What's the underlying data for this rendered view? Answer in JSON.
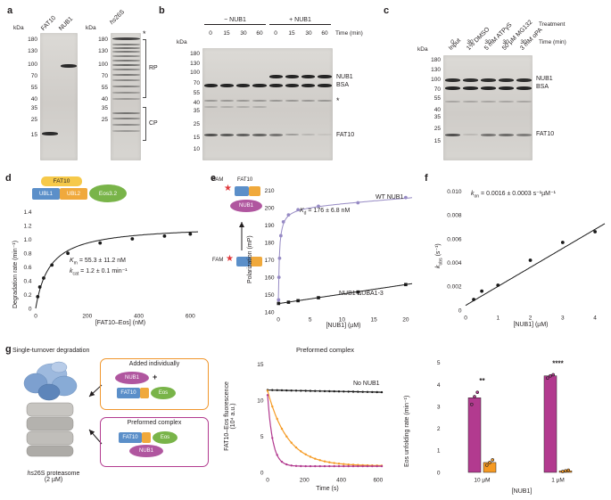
{
  "panels": {
    "a": {
      "label": "a",
      "kda1": "kDa",
      "kda2": "kDa",
      "lanes": [
        "FAT10",
        "NUB1"
      ],
      "ladder1": [
        "180",
        "130",
        "100",
        "70",
        "55",
        "40",
        "35",
        "25",
        "15"
      ],
      "ladder2": [
        "180",
        "130",
        "100",
        "70",
        "55",
        "40",
        "35",
        "25"
      ],
      "gel2_lane_italic": "hs",
      "gel2_lane_rest": "26S",
      "asterisk": "*",
      "rp": "RP",
      "cp": "CP"
    },
    "b": {
      "label": "b",
      "group_minus": "− NUB1",
      "group_plus": "+ NUB1",
      "times": [
        "0",
        "15",
        "30",
        "60",
        "0",
        "15",
        "30",
        "60"
      ],
      "time_label": "Time (min)",
      "kda": "kDa",
      "ladder": [
        "180",
        "130",
        "100",
        "70",
        "55",
        "40",
        "35",
        "25",
        "15",
        "10"
      ],
      "nub1": "NUB1",
      "bsa": "BSA",
      "star": "*",
      "fat10": "FAT10"
    },
    "c": {
      "label": "c",
      "treatments": [
        "Input",
        "1% DMSO",
        "5 mM ATPγS",
        "50 µM MG132",
        "3 mM oPA"
      ],
      "treatment_label": "Treatment",
      "times": [
        "0",
        "30",
        "30",
        "30",
        "30"
      ],
      "time_label": "Time (min)",
      "kda": "kDa",
      "ladder": [
        "180",
        "130",
        "100",
        "70",
        "55",
        "40",
        "35",
        "25",
        "15"
      ],
      "nub1": "NUB1",
      "bsa": "BSA",
      "fat10": "FAT10"
    },
    "d": {
      "label": "d",
      "fat10": "FAT10",
      "ubl1": "UBL1",
      "ubl2": "UBL2",
      "eos": "Eos3.2"
    },
    "e": {
      "label": "e",
      "fam1": "FAM",
      "fam2": "FAM",
      "fat10": "FAT10",
      "nub1": "NUB1"
    },
    "f": {
      "label": "f"
    },
    "g": {
      "label": "g",
      "title": "Single-turnover degradation",
      "added_box": "Added individually",
      "preformed_box": "Preformed complex",
      "nub1": "NUB1",
      "plus": "+",
      "fat10_1": "FAT10",
      "eos_1": "Eos",
      "fat10_2": "FAT10",
      "eos_2": "Eos",
      "nub1_2": "NUB1",
      "psome_italic": "hs",
      "psome_rest": "26S proteasome",
      "psome_conc": "(2 µM)"
    }
  },
  "icons": {
    "fam_star": "★"
  },
  "gels": {
    "a1": {
      "lanes": 2,
      "bands": [
        [
          0,
          0.79,
          0.9,
          4
        ],
        [
          1,
          0.26,
          0.92,
          4
        ]
      ]
    },
    "a2": {
      "lanes": 1,
      "bands": [
        [
          0,
          0.045,
          0.8,
          3
        ],
        [
          0,
          0.09,
          0.5,
          2
        ],
        [
          0,
          0.12,
          0.55,
          2
        ],
        [
          0,
          0.15,
          0.5,
          2
        ],
        [
          0,
          0.185,
          0.45,
          2
        ],
        [
          0,
          0.22,
          0.5,
          2
        ],
        [
          0,
          0.255,
          0.6,
          2
        ],
        [
          0,
          0.29,
          0.45,
          2
        ],
        [
          0,
          0.33,
          0.5,
          2
        ],
        [
          0,
          0.37,
          0.4,
          2
        ],
        [
          0,
          0.42,
          0.45,
          2
        ],
        [
          0,
          0.47,
          0.35,
          2
        ],
        [
          0,
          0.52,
          0.3,
          2
        ],
        [
          0,
          0.63,
          0.5,
          2
        ],
        [
          0,
          0.67,
          0.45,
          2
        ],
        [
          0,
          0.72,
          0.4,
          2
        ],
        [
          0,
          0.77,
          0.3,
          2
        ]
      ]
    },
    "b": {
      "lanes": 8,
      "bands": [
        [
          0,
          0.335,
          0.95,
          4
        ],
        [
          1,
          0.335,
          0.95,
          4
        ],
        [
          2,
          0.335,
          0.95,
          4
        ],
        [
          3,
          0.335,
          0.95,
          4
        ],
        [
          4,
          0.335,
          0.95,
          4
        ],
        [
          5,
          0.335,
          0.95,
          4
        ],
        [
          6,
          0.335,
          0.95,
          4
        ],
        [
          7,
          0.335,
          0.95,
          4
        ],
        [
          4,
          0.255,
          0.95,
          4
        ],
        [
          5,
          0.255,
          0.95,
          4
        ],
        [
          6,
          0.255,
          0.95,
          4
        ],
        [
          7,
          0.255,
          0.95,
          4
        ],
        [
          0,
          0.47,
          0.3,
          2
        ],
        [
          1,
          0.47,
          0.3,
          2
        ],
        [
          2,
          0.47,
          0.3,
          2
        ],
        [
          3,
          0.47,
          0.3,
          2
        ],
        [
          4,
          0.47,
          0.3,
          2
        ],
        [
          5,
          0.47,
          0.3,
          2
        ],
        [
          6,
          0.47,
          0.3,
          2
        ],
        [
          7,
          0.47,
          0.3,
          2
        ],
        [
          0,
          0.52,
          0.18,
          2
        ],
        [
          1,
          0.52,
          0.18,
          2
        ],
        [
          2,
          0.52,
          0.18,
          2
        ],
        [
          3,
          0.52,
          0.18,
          2
        ],
        [
          0,
          0.77,
          0.7,
          3
        ],
        [
          1,
          0.77,
          0.65,
          3
        ],
        [
          2,
          0.77,
          0.62,
          3
        ],
        [
          3,
          0.77,
          0.6,
          3
        ],
        [
          4,
          0.77,
          0.5,
          3
        ],
        [
          5,
          0.77,
          0.28,
          2
        ],
        [
          6,
          0.77,
          0.14,
          2
        ],
        [
          7,
          0.77,
          0.07,
          2
        ]
      ]
    },
    "c": {
      "lanes": 5,
      "bands": [
        [
          0,
          0.24,
          0.9,
          4
        ],
        [
          1,
          0.24,
          0.9,
          4
        ],
        [
          2,
          0.24,
          0.9,
          4
        ],
        [
          3,
          0.24,
          0.9,
          4
        ],
        [
          4,
          0.24,
          0.9,
          4
        ],
        [
          0,
          0.315,
          0.95,
          4
        ],
        [
          1,
          0.315,
          0.95,
          4
        ],
        [
          2,
          0.315,
          0.95,
          4
        ],
        [
          3,
          0.315,
          0.95,
          4
        ],
        [
          4,
          0.315,
          0.95,
          4
        ],
        [
          0,
          0.44,
          0.22,
          2
        ],
        [
          1,
          0.44,
          0.22,
          2
        ],
        [
          2,
          0.44,
          0.22,
          2
        ],
        [
          3,
          0.44,
          0.22,
          2
        ],
        [
          4,
          0.44,
          0.22,
          2
        ],
        [
          0,
          0.755,
          0.7,
          3
        ],
        [
          1,
          0.755,
          0.12,
          2
        ],
        [
          2,
          0.755,
          0.5,
          3
        ],
        [
          3,
          0.755,
          0.55,
          3
        ],
        [
          4,
          0.755,
          0.45,
          3
        ]
      ]
    }
  },
  "chart_data": [
    {
      "id": "d",
      "type": "scatter",
      "xlabel": "[FAT10–Eos] (nM)",
      "ylabel": "Degradation rate (min⁻¹)",
      "xlim": [
        0,
        630
      ],
      "ylim": [
        0,
        1.45
      ],
      "xticks": [
        0,
        200,
        400,
        600
      ],
      "xtick_labels": [
        "0",
        "200",
        "400",
        "600"
      ],
      "yticks": [
        0,
        0.2,
        0.4,
        0.6,
        0.8,
        1.0,
        1.2,
        1.4
      ],
      "ytick_labels": [
        "0",
        "0.2",
        "0.4",
        "0.6",
        "0.8",
        "1.0",
        "1.2",
        "1.4"
      ],
      "fit": {
        "model": "michaelis-menten",
        "vmax": 1.21,
        "km": 55.3
      },
      "series": [
        {
          "name": "FAT10–Eos degradation",
          "color": "#1a1a1a",
          "marker": "circle",
          "points": [
            [
              8,
              0.17,
              0.04
            ],
            [
              16,
              0.31,
              0.05
            ],
            [
              31,
              0.44,
              0.06
            ],
            [
              63,
              0.63,
              0.09
            ],
            [
              125,
              0.8,
              0.11
            ],
            [
              250,
              0.95,
              0.08
            ],
            [
              375,
              1.01,
              0.1
            ],
            [
              500,
              1.05,
              0.07
            ],
            [
              600,
              1.08,
              0.05
            ]
          ]
        }
      ],
      "annotation_km": {
        "sym": "K",
        "sub": "m",
        "rest": " = 55.3 ± 11.2 nM"
      },
      "annotation_kcat": {
        "sym": "k",
        "sub": "cat",
        "rest": " = 1.2 ± 0.1 min⁻¹"
      }
    },
    {
      "id": "e",
      "type": "scatter",
      "xlabel": "[NUB1] (µM)",
      "ylabel": "Polarization (mP)",
      "xlim": [
        0,
        21
      ],
      "ylim": [
        140,
        212
      ],
      "xticks": [
        0,
        5,
        10,
        15,
        20
      ],
      "xtick_labels": [
        "0",
        "5",
        "10",
        "15",
        "20"
      ],
      "yticks": [
        140,
        150,
        160,
        170,
        180,
        190,
        200,
        210
      ],
      "ytick_labels": [
        "140",
        "150",
        "160",
        "170",
        "180",
        "190",
        "200",
        "210"
      ],
      "series": [
        {
          "name": "WT NUB1",
          "color": "#968ac4",
          "marker": "circle",
          "fit": {
            "model": "binding",
            "p0": 145.5,
            "amp": 55,
            "kd": 0.176,
            "slope": 0.28
          },
          "points": [
            [
              0.04,
              147
            ],
            [
              0.1,
              160
            ],
            [
              0.2,
              171
            ],
            [
              0.4,
              184
            ],
            [
              0.8,
              192
            ],
            [
              1.6,
              196
            ],
            [
              3.1,
              199
            ],
            [
              6.3,
              201
            ],
            [
              12.5,
              203
            ],
            [
              20,
              206
            ]
          ]
        },
        {
          "name": "NUB1 ΔUBA1-3",
          "color": "#1a1a1a",
          "marker": "square",
          "fit": {
            "model": "linear",
            "slope": 0.55,
            "intercept": 144.8
          },
          "points": [
            [
              0.04,
              144.9
            ],
            [
              1.6,
              145.6
            ],
            [
              3.1,
              146.5
            ],
            [
              6.3,
              148.2
            ],
            [
              12.5,
              151.5
            ],
            [
              20,
              155.8
            ]
          ]
        }
      ],
      "annotation_kd": {
        "sym": "K",
        "sub": "d",
        "rest": " = 176 ± 6.8 nM"
      },
      "label_wt": "WT NUB1",
      "label_mut": "NUB1 ΔUBA1-3"
    },
    {
      "id": "f",
      "type": "scatter",
      "xlabel": "[NUB1] (µM)",
      "ylabel_parts": {
        "sym": "k",
        "sub": "obs",
        "rest": " (s⁻¹)"
      },
      "xlim": [
        0,
        4.3
      ],
      "ylim": [
        0,
        0.0102
      ],
      "xticks": [
        0,
        1,
        2,
        3,
        4
      ],
      "xtick_labels": [
        "0",
        "1",
        "2",
        "3",
        "4"
      ],
      "yticks": [
        0,
        0.002,
        0.004,
        0.006,
        0.008,
        0.01
      ],
      "ytick_labels": [
        "0",
        "0.002",
        "0.004",
        "0.006",
        "0.008",
        "0.010"
      ],
      "fit": {
        "model": "linear",
        "slope": 0.0016,
        "intercept": 0.0004
      },
      "series": [
        {
          "name": "kobs",
          "color": "#1a1a1a",
          "marker": "circle",
          "points": [
            [
              0.25,
              0.0009
            ],
            [
              0.5,
              0.0016
            ],
            [
              1,
              0.0021
            ],
            [
              2,
              0.0042
            ],
            [
              3,
              0.0057
            ],
            [
              4,
              0.0066
            ]
          ]
        }
      ],
      "annotation_kon": {
        "sym": "k",
        "sub": "on",
        "rest": " = 0.0016 ± 0.0003 s⁻¹µM⁻¹"
      }
    },
    {
      "id": "g_kinetics",
      "type": "line",
      "title": "Preformed complex",
      "xlabel": "Time (s)",
      "ylabel_line1": "FAT10–Eos fluorescence",
      "ylabel_line2": "(10⁴ a.u.)",
      "xlim": [
        0,
        620
      ],
      "ylim": [
        0,
        15.8
      ],
      "xticks": [
        0,
        200,
        400,
        600
      ],
      "xtick_labels": [
        "0",
        "200",
        "400",
        "600"
      ],
      "yticks": [
        0,
        5,
        10,
        15
      ],
      "ytick_labels": [
        "0",
        "5",
        "10",
        "15"
      ],
      "series": [
        {
          "name": "No NUB1",
          "color": "#1a1a1a",
          "model": {
            "kind": "flat",
            "start": 11.4,
            "end": 11.1
          }
        },
        {
          "name": "Added individually",
          "color": "#f59a23",
          "model": {
            "kind": "exp",
            "start": 11.3,
            "plateau": 0.9,
            "tau": 110
          }
        },
        {
          "name": "Preformed complex",
          "color": "#b23a8f",
          "model": {
            "kind": "exp",
            "start": 10.7,
            "plateau": 0.85,
            "tau": 28
          }
        }
      ],
      "label_no_nub1": "No NUB1"
    },
    {
      "id": "g_bars",
      "type": "bar",
      "xlabel": "[NUB1]",
      "ylabel": "Eos unfolding rate (min⁻¹)",
      "categories": [
        "10 µM",
        "1 µM"
      ],
      "ylim": [
        0,
        5.2
      ],
      "yticks": [
        0,
        1,
        2,
        3,
        4,
        5
      ],
      "ytick_labels": [
        "0",
        "1",
        "2",
        "3",
        "4",
        "5"
      ],
      "series": [
        {
          "name": "Preformed complex",
          "color": "#b23a8f",
          "values": [
            3.4,
            4.4
          ],
          "errors": [
            0.3,
            0.08
          ],
          "points": [
            [
              3.1,
              3.45,
              3.65
            ],
            [
              4.3,
              4.4,
              4.45
            ]
          ]
        },
        {
          "name": "Added individually",
          "color": "#f59a23",
          "values": [
            0.45,
            0.07
          ],
          "errors": [
            0.12,
            0.03
          ],
          "points": [
            [
              0.33,
              0.45,
              0.57
            ],
            [
              0.04,
              0.07,
              0.1
            ]
          ]
        }
      ],
      "significance": [
        "**",
        "****"
      ]
    }
  ]
}
